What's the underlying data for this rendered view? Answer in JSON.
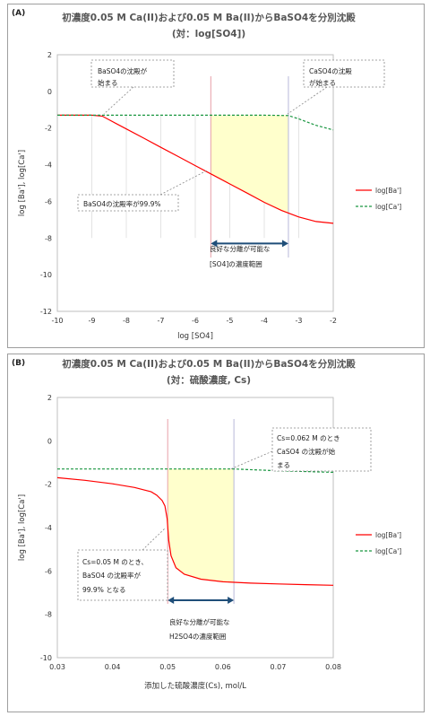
{
  "chart_data": [
    {
      "type": "line",
      "panel_label": "(A)",
      "title": "初濃度0.05 M Ca(II)および0.05 M Ba(II)からBaSO4を分別沈殿",
      "subtitle": "(対：log[SO4])",
      "xlabel": "log [SO4]",
      "ylabel": "log [Ba'], log[Ca']",
      "xlim": [
        -10,
        -2
      ],
      "ylim": [
        -12,
        2
      ],
      "xticks": [
        "-10",
        "-9",
        "-8",
        "-7",
        "-6",
        "-5",
        "-4",
        "-3",
        "-2"
      ],
      "yticks": [
        "2",
        "0",
        "-2",
        "-4",
        "-6",
        "-8",
        "-10",
        "-12"
      ],
      "grid": "vertical minor lines at each integer x",
      "legend": "right",
      "series": [
        {
          "name": "log[Ba']",
          "color": "#ff0000",
          "style": "solid",
          "x": [
            -10,
            -9.5,
            -9,
            -8.7,
            -8.5,
            -8,
            -7.5,
            -7,
            -6.5,
            -6,
            -5.5,
            -5,
            -4.5,
            -4,
            -3.5,
            -3,
            -2.5,
            -2
          ],
          "y": [
            -1.3,
            -1.3,
            -1.3,
            -1.35,
            -1.55,
            -2.05,
            -2.55,
            -3.05,
            -3.55,
            -4.05,
            -4.55,
            -5.05,
            -5.55,
            -6.05,
            -6.5,
            -6.85,
            -7.1,
            -7.2
          ]
        },
        {
          "name": "log[Ca']",
          "color": "#1a9641",
          "style": "dashed",
          "x": [
            -10,
            -9,
            -8,
            -7,
            -6,
            -5,
            -4,
            -3.3,
            -3,
            -2.5,
            -2
          ],
          "y": [
            -1.3,
            -1.3,
            -1.3,
            -1.3,
            -1.3,
            -1.3,
            -1.3,
            -1.32,
            -1.5,
            -1.85,
            -2.1
          ]
        }
      ],
      "shaded_region": {
        "x": [
          -5.55,
          -3.3
        ],
        "y_top": -1.3,
        "color": "#ffffcc"
      },
      "vertical_lines": [
        -5.55,
        -3.3
      ],
      "range_arrow": {
        "x": [
          -5.55,
          -3.3
        ],
        "y": -8.3
      },
      "annotations": [
        {
          "text": [
            "BaSO4の沈殿が",
            "始まる"
          ]
        },
        {
          "text": [
            "CaSO4の沈殿",
            "が始まる"
          ]
        },
        {
          "text": [
            "BaSO4の沈殿率が99.9%"
          ]
        },
        {
          "text": [
            "良好な分離が可能な",
            "[SO4]の濃度範囲"
          ]
        }
      ]
    },
    {
      "type": "line",
      "panel_label": "(B)",
      "title": "初濃度0.05 M Ca(II)および0.05 M Ba(II)からBaSO4を分別沈殿",
      "subtitle": "(対：硫酸濃度, Cs)",
      "xlabel": "添加した硫酸濃度(Cs), mol/L",
      "ylabel": "log [Ba'], log[Ca']",
      "xlim": [
        0.03,
        0.08
      ],
      "ylim": [
        -10,
        2
      ],
      "xticks": [
        "0.03",
        "0.04",
        "0.05",
        "0.06",
        "0.07",
        "0.08"
      ],
      "yticks": [
        "2",
        "0",
        "-2",
        "-4",
        "-6",
        "-8",
        "-10"
      ],
      "legend": "right",
      "series": [
        {
          "name": "log[Ba']",
          "color": "#ff0000",
          "style": "solid",
          "x": [
            0.03,
            0.035,
            0.04,
            0.044,
            0.047,
            0.048,
            0.049,
            0.0495,
            0.0499,
            0.0502,
            0.0506,
            0.0515,
            0.053,
            0.056,
            0.06,
            0.065,
            0.07,
            0.075,
            0.08
          ],
          "y": [
            -1.7,
            -1.82,
            -1.98,
            -2.15,
            -2.35,
            -2.5,
            -2.75,
            -3.0,
            -3.6,
            -4.6,
            -5.3,
            -5.85,
            -6.15,
            -6.38,
            -6.5,
            -6.56,
            -6.6,
            -6.63,
            -6.66
          ]
        },
        {
          "name": "log[Ca']",
          "color": "#1a9641",
          "style": "dashed",
          "x": [
            0.03,
            0.04,
            0.05,
            0.06,
            0.062,
            0.07,
            0.08
          ],
          "y": [
            -1.3,
            -1.3,
            -1.3,
            -1.3,
            -1.3,
            -1.38,
            -1.45
          ]
        }
      ],
      "shaded_region": {
        "x": [
          0.05,
          0.062
        ],
        "y_top": -1.3,
        "color": "#ffffcc"
      },
      "vertical_lines": [
        0.05,
        0.062
      ],
      "range_arrow": {
        "x": [
          0.05,
          0.062
        ],
        "y": -7.35
      },
      "annotations": [
        {
          "text": [
            "Cs=0.062 M のとき",
            "CaSO4 の沈殿が始",
            "まる"
          ]
        },
        {
          "text": [
            "Cs=0.05 M のとき、",
            "BaSO4 の沈殿率が",
            "99.9% となる"
          ]
        },
        {
          "text": [
            "良好な分離が可能な",
            "H2SO4の濃度範囲"
          ]
        }
      ]
    }
  ]
}
